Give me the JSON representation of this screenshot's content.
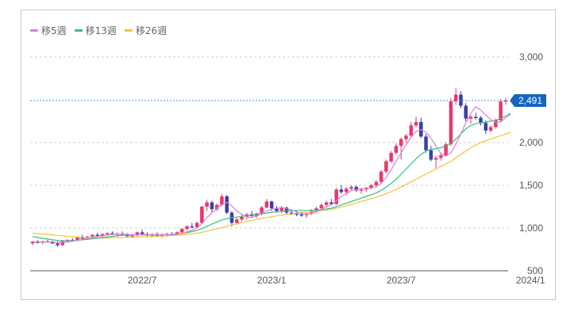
{
  "legend": [
    {
      "label": "移5週",
      "color": "#d97fe0"
    },
    {
      "label": "移13週",
      "color": "#33c07a"
    },
    {
      "label": "移26週",
      "color": "#f2c23a"
    }
  ],
  "current_price": {
    "label": "2,491",
    "value": 2491,
    "color": "#1565c0"
  },
  "colors": {
    "up": "#e8386a",
    "down": "#3b3fa8",
    "grid": "#cfcfcf",
    "axis": "#555555"
  },
  "chart_data": {
    "type": "candlestick",
    "title": "",
    "xlabel": "",
    "ylabel": "",
    "ylim": [
      500,
      3000
    ],
    "y_ticks": [
      {
        "value": 3000,
        "label": "3,000"
      },
      {
        "value": 2000,
        "label": "2,000"
      },
      {
        "value": 1500,
        "label": "1,500"
      },
      {
        "value": 1000,
        "label": "1,000"
      },
      {
        "value": 500,
        "label": "500"
      }
    ],
    "x_ticks": [
      {
        "index": 22,
        "label": "2022/7"
      },
      {
        "index": 48,
        "label": "2023/1"
      },
      {
        "index": 74,
        "label": "2023/7"
      },
      {
        "index": 100,
        "label": "2024/1"
      }
    ],
    "grid": true,
    "legend_position": "top-left",
    "current_price_line": 2491,
    "series_names": [
      "移5週",
      "移13週",
      "移26週"
    ],
    "candles": [
      [
        820,
        850,
        800,
        840
      ],
      [
        840,
        860,
        820,
        830
      ],
      [
        830,
        850,
        810,
        845
      ],
      [
        845,
        860,
        830,
        835
      ],
      [
        835,
        850,
        815,
        820
      ],
      [
        820,
        845,
        780,
        800
      ],
      [
        800,
        860,
        790,
        850
      ],
      [
        850,
        870,
        830,
        860
      ],
      [
        860,
        880,
        840,
        855
      ],
      [
        855,
        900,
        850,
        890
      ],
      [
        890,
        920,
        870,
        880
      ],
      [
        880,
        910,
        860,
        900
      ],
      [
        900,
        930,
        880,
        920
      ],
      [
        920,
        945,
        900,
        910
      ],
      [
        910,
        940,
        890,
        930
      ],
      [
        930,
        950,
        910,
        940
      ],
      [
        940,
        960,
        920,
        925
      ],
      [
        925,
        950,
        900,
        935
      ],
      [
        935,
        960,
        915,
        920
      ],
      [
        920,
        940,
        890,
        905
      ],
      [
        905,
        930,
        880,
        915
      ],
      [
        915,
        960,
        900,
        950
      ],
      [
        950,
        980,
        920,
        930
      ],
      [
        930,
        950,
        900,
        915
      ],
      [
        915,
        940,
        890,
        925
      ],
      [
        925,
        950,
        905,
        910
      ],
      [
        910,
        935,
        890,
        920
      ],
      [
        920,
        945,
        900,
        930
      ],
      [
        930,
        955,
        910,
        925
      ],
      [
        925,
        960,
        910,
        950
      ],
      [
        950,
        1000,
        940,
        990
      ],
      [
        990,
        1030,
        970,
        1020
      ],
      [
        1020,
        1060,
        1000,
        1010
      ],
      [
        1010,
        1080,
        1000,
        1060
      ],
      [
        1060,
        1260,
        1050,
        1250
      ],
      [
        1250,
        1330,
        1200,
        1300
      ],
      [
        1300,
        1320,
        1180,
        1220
      ],
      [
        1220,
        1290,
        1200,
        1270
      ],
      [
        1270,
        1400,
        1250,
        1370
      ],
      [
        1370,
        1390,
        1160,
        1180
      ],
      [
        1180,
        1200,
        1020,
        1060
      ],
      [
        1060,
        1120,
        1040,
        1100
      ],
      [
        1100,
        1150,
        1080,
        1130
      ],
      [
        1130,
        1180,
        1100,
        1160
      ],
      [
        1160,
        1200,
        1130,
        1140
      ],
      [
        1140,
        1180,
        1120,
        1170
      ],
      [
        1170,
        1260,
        1150,
        1240
      ],
      [
        1240,
        1340,
        1230,
        1310
      ],
      [
        1310,
        1320,
        1200,
        1230
      ],
      [
        1230,
        1260,
        1180,
        1200
      ],
      [
        1200,
        1260,
        1170,
        1240
      ],
      [
        1240,
        1250,
        1160,
        1180
      ],
      [
        1180,
        1220,
        1150,
        1170
      ],
      [
        1170,
        1200,
        1140,
        1160
      ],
      [
        1160,
        1190,
        1130,
        1150
      ],
      [
        1150,
        1180,
        1120,
        1170
      ],
      [
        1170,
        1220,
        1150,
        1200
      ],
      [
        1200,
        1250,
        1180,
        1230
      ],
      [
        1230,
        1290,
        1210,
        1270
      ],
      [
        1270,
        1320,
        1240,
        1300
      ],
      [
        1300,
        1340,
        1270,
        1280
      ],
      [
        1280,
        1470,
        1270,
        1450
      ],
      [
        1450,
        1500,
        1400,
        1420
      ],
      [
        1420,
        1480,
        1390,
        1460
      ],
      [
        1460,
        1500,
        1440,
        1480
      ],
      [
        1480,
        1500,
        1420,
        1440
      ],
      [
        1440,
        1470,
        1400,
        1450
      ],
      [
        1450,
        1480,
        1420,
        1470
      ],
      [
        1470,
        1520,
        1450,
        1500
      ],
      [
        1500,
        1560,
        1480,
        1540
      ],
      [
        1540,
        1680,
        1520,
        1660
      ],
      [
        1660,
        1800,
        1640,
        1780
      ],
      [
        1780,
        1900,
        1760,
        1880
      ],
      [
        1880,
        1990,
        1860,
        1960
      ],
      [
        1960,
        2060,
        1800,
        2040
      ],
      [
        2040,
        2100,
        2000,
        2080
      ],
      [
        2080,
        2240,
        2060,
        2200
      ],
      [
        2200,
        2300,
        2180,
        2240
      ],
      [
        2240,
        2290,
        2050,
        2070
      ],
      [
        2070,
        2100,
        1880,
        1910
      ],
      [
        1910,
        1960,
        1780,
        1800
      ],
      [
        1800,
        1850,
        1700,
        1820
      ],
      [
        1820,
        1880,
        1790,
        1850
      ],
      [
        1850,
        2000,
        1840,
        1980
      ],
      [
        1980,
        2520,
        1960,
        2480
      ],
      [
        2480,
        2640,
        2440,
        2560
      ],
      [
        2560,
        2600,
        2400,
        2430
      ],
      [
        2430,
        2460,
        2250,
        2280
      ],
      [
        2280,
        2320,
        2220,
        2300
      ],
      [
        2300,
        2350,
        2270,
        2290
      ],
      [
        2290,
        2310,
        2200,
        2230
      ],
      [
        2230,
        2260,
        2100,
        2140
      ],
      [
        2140,
        2200,
        2120,
        2180
      ],
      [
        2180,
        2280,
        2160,
        2260
      ],
      [
        2260,
        2510,
        2240,
        2480
      ],
      [
        2480,
        2520,
        2440,
        2491
      ]
    ],
    "ma5": [
      840,
      838,
      836,
      838,
      836,
      830,
      832,
      838,
      846,
      858,
      868,
      878,
      890,
      900,
      908,
      918,
      926,
      930,
      930,
      926,
      920,
      920,
      924,
      924,
      924,
      924,
      920,
      920,
      924,
      928,
      936,
      954,
      976,
      1000,
      1050,
      1120,
      1180,
      1230,
      1280,
      1300,
      1260,
      1200,
      1160,
      1130,
      1120,
      1140,
      1170,
      1200,
      1220,
      1230,
      1240,
      1230,
      1210,
      1190,
      1170,
      1160,
      1170,
      1190,
      1220,
      1250,
      1270,
      1320,
      1370,
      1400,
      1440,
      1450,
      1460,
      1460,
      1470,
      1480,
      1520,
      1590,
      1680,
      1780,
      1880,
      1970,
      2060,
      2130,
      2150,
      2120,
      2050,
      1960,
      1870,
      1840,
      1880,
      1980,
      2100,
      2230,
      2340,
      2420,
      2380,
      2320,
      2270,
      2240,
      2240,
      2290,
      2330
    ],
    "ma13": [
      900,
      890,
      880,
      870,
      862,
      856,
      850,
      850,
      852,
      856,
      862,
      868,
      874,
      880,
      888,
      896,
      904,
      910,
      916,
      918,
      920,
      920,
      920,
      920,
      920,
      922,
      922,
      924,
      926,
      930,
      936,
      946,
      958,
      972,
      994,
      1020,
      1046,
      1070,
      1094,
      1110,
      1120,
      1128,
      1136,
      1144,
      1150,
      1158,
      1166,
      1176,
      1184,
      1190,
      1196,
      1200,
      1204,
      1206,
      1206,
      1206,
      1206,
      1208,
      1214,
      1222,
      1232,
      1250,
      1270,
      1290,
      1310,
      1330,
      1350,
      1370,
      1390,
      1410,
      1440,
      1480,
      1520,
      1570,
      1630,
      1690,
      1750,
      1810,
      1860,
      1900,
      1920,
      1930,
      1940,
      1960,
      1990,
      2040,
      2100,
      2160,
      2200,
      2220,
      2230,
      2240,
      2250,
      2260,
      2280,
      2310,
      2340
    ],
    "ma26": [
      940,
      935,
      930,
      925,
      920,
      914,
      908,
      902,
      898,
      894,
      890,
      888,
      886,
      884,
      884,
      884,
      886,
      888,
      890,
      892,
      894,
      896,
      898,
      900,
      902,
      904,
      906,
      908,
      912,
      916,
      920,
      926,
      932,
      940,
      950,
      962,
      976,
      990,
      1006,
      1022,
      1036,
      1050,
      1064,
      1078,
      1090,
      1102,
      1112,
      1122,
      1132,
      1142,
      1150,
      1158,
      1166,
      1172,
      1178,
      1184,
      1190,
      1196,
      1202,
      1210,
      1220,
      1232,
      1246,
      1262,
      1278,
      1294,
      1310,
      1326,
      1342,
      1360,
      1380,
      1402,
      1426,
      1452,
      1480,
      1510,
      1540,
      1570,
      1600,
      1630,
      1660,
      1690,
      1720,
      1750,
      1780,
      1820,
      1860,
      1900,
      1940,
      1970,
      2000,
      2020,
      2040,
      2060,
      2080,
      2100,
      2120
    ]
  }
}
